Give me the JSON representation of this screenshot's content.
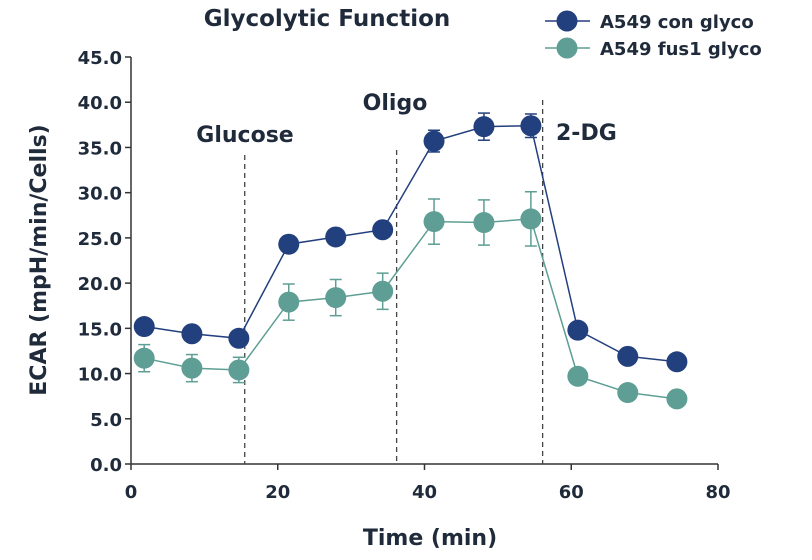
{
  "chart_data": {
    "type": "line",
    "title": "Glycolytic Function",
    "xlabel": "Time (min)",
    "ylabel": "ECAR (mpH/min/Cells)",
    "xlim": [
      0,
      80
    ],
    "ylim": [
      0,
      45
    ],
    "xticks": [
      "0",
      "20",
      "40",
      "60",
      "80"
    ],
    "yticks": [
      "0.0",
      "5.0",
      "10.0",
      "15.0",
      "20.0",
      "25.0",
      "30.0",
      "35.0",
      "40.0",
      "45.0"
    ],
    "grid": false,
    "legend_position": "top-right",
    "x": [
      1.8,
      8.3,
      14.7,
      21.5,
      27.9,
      34.3,
      41.3,
      48.1,
      54.5,
      60.9,
      67.7,
      74.4
    ],
    "series": [
      {
        "name": "A549 con glyco",
        "color": "#223f7e",
        "values": [
          15.2,
          14.4,
          13.9,
          24.3,
          25.1,
          25.9,
          35.7,
          37.3,
          37.4,
          14.8,
          11.9,
          11.3
        ],
        "errors": [
          0.5,
          0.5,
          0.5,
          0.9,
          0.5,
          0.8,
          1.2,
          1.5,
          1.3,
          0.4,
          0.4,
          0.4
        ]
      },
      {
        "name": "A549 fus1 glyco",
        "color": "#5e9e94",
        "values": [
          11.7,
          10.6,
          10.4,
          17.9,
          18.4,
          19.1,
          26.8,
          26.7,
          27.1,
          9.7,
          7.9,
          7.2
        ],
        "errors": [
          1.5,
          1.5,
          1.4,
          2.0,
          2.0,
          2.0,
          2.5,
          2.5,
          3.0,
          0.4,
          0.4,
          0.4
        ]
      }
    ],
    "annotations": [
      {
        "label": "Glucose",
        "x": 15.5
      },
      {
        "label": "Oligo",
        "x": 36.2
      },
      {
        "label": "2-DG",
        "x": 56.1
      }
    ]
  }
}
